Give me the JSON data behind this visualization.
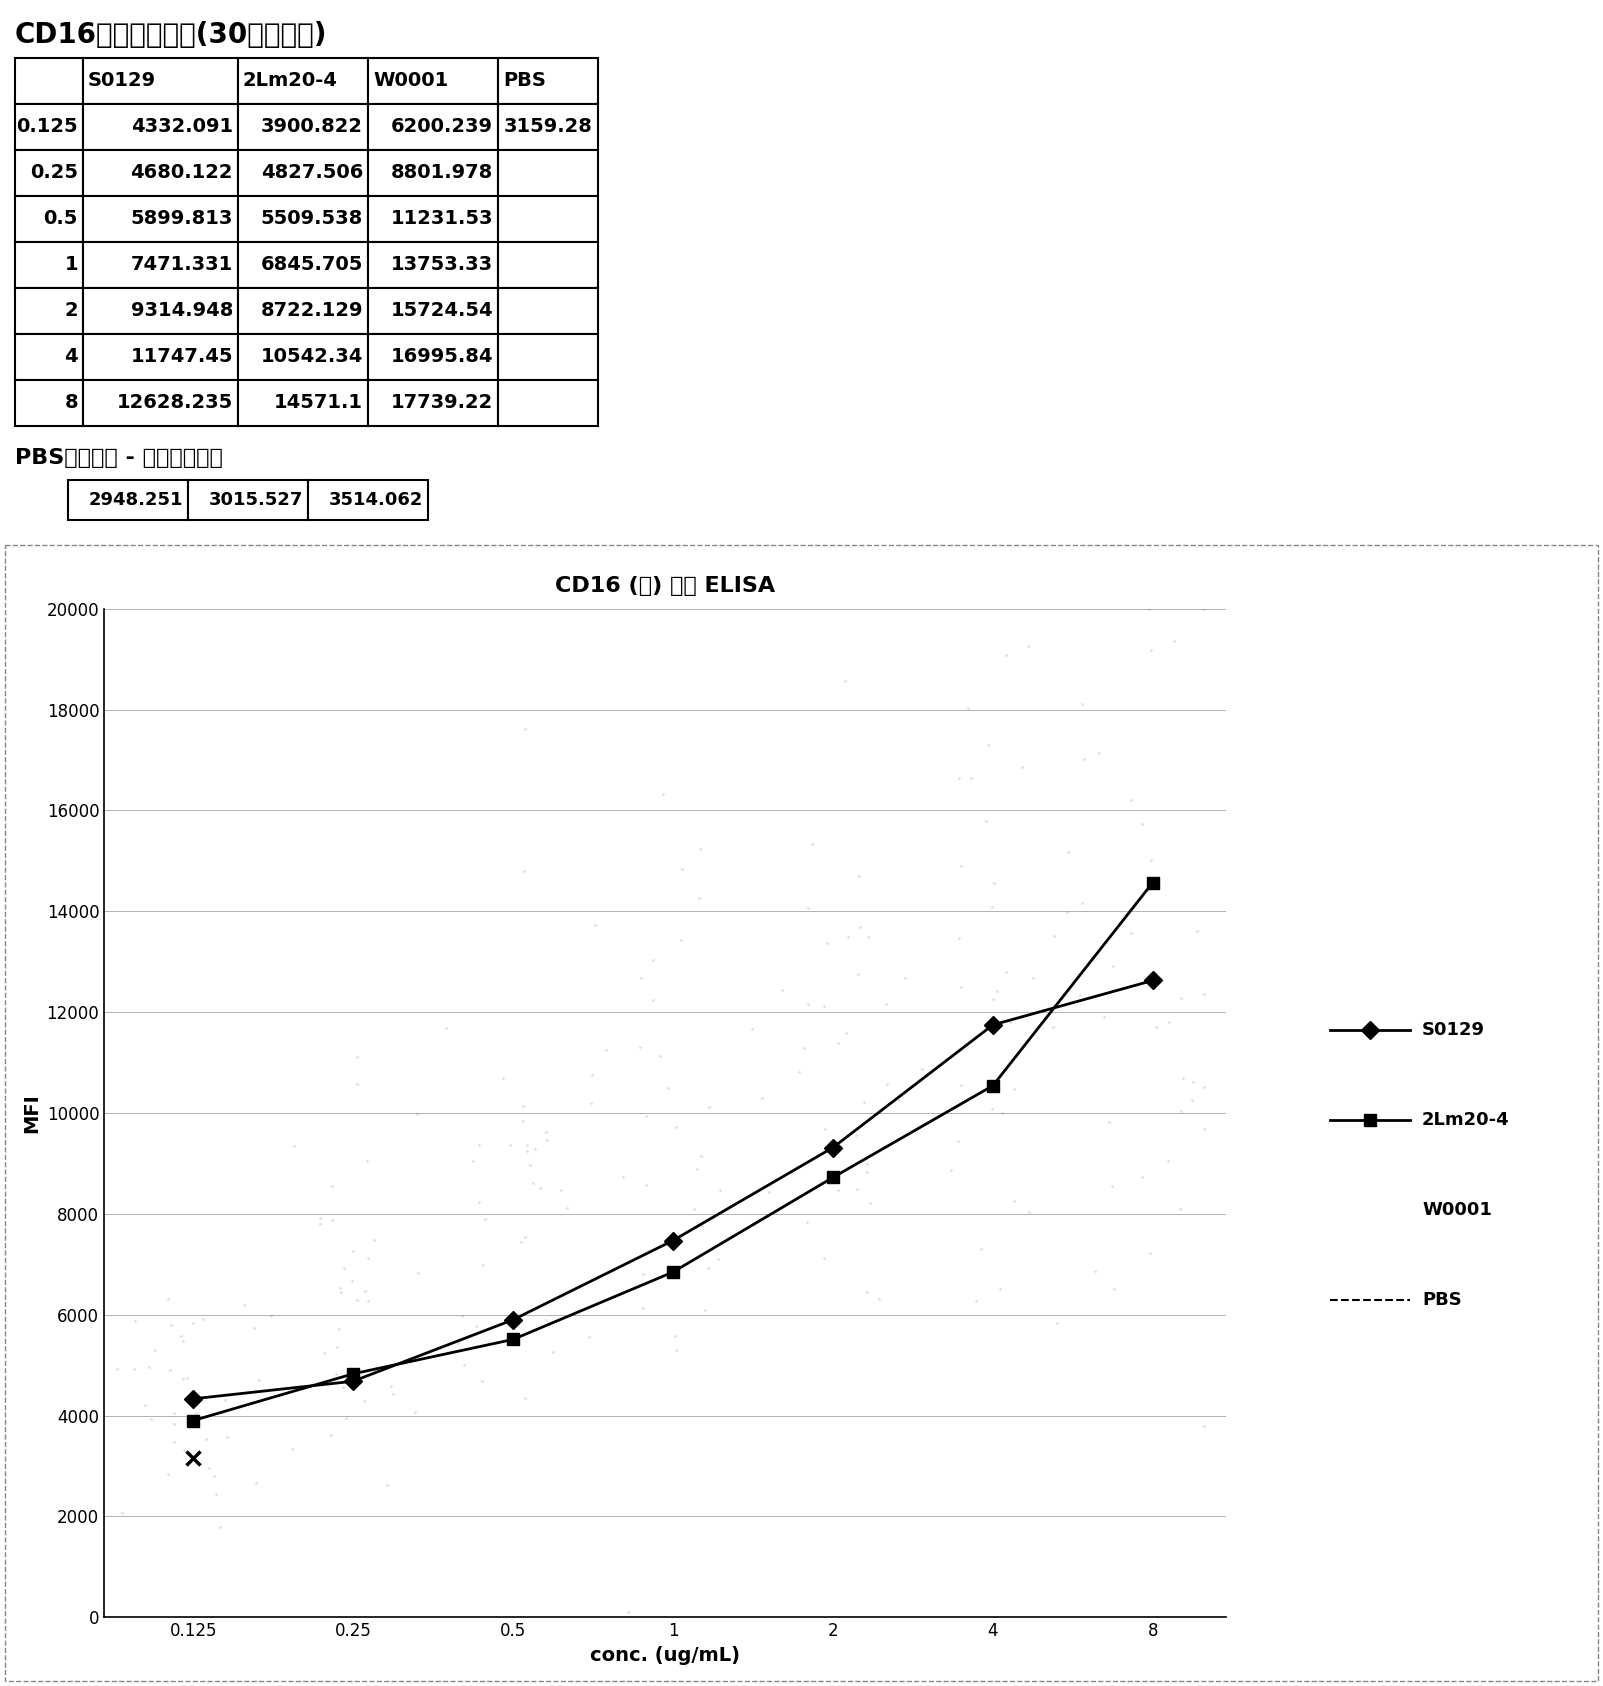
{
  "title_table": "CD16高亲和力数据(30分钟读数)",
  "table_headers": [
    "",
    "S0129",
    "2Lm20-4",
    "W0001",
    "PBS"
  ],
  "table_rows": [
    [
      "0.125",
      "4332.091",
      "3900.822",
      "6200.239",
      "3159.28"
    ],
    [
      "0.25",
      "4680.122",
      "4827.506",
      "8801.978",
      ""
    ],
    [
      "0.5",
      "5899.813",
      "5509.538",
      "11231.53",
      ""
    ],
    [
      "1",
      "7471.331",
      "6845.705",
      "13753.33",
      ""
    ],
    [
      "2",
      "9314.948",
      "8722.129",
      "15724.54",
      ""
    ],
    [
      "4",
      "11747.45",
      "10542.34",
      "16995.84",
      ""
    ],
    [
      "8",
      "12628.235",
      "14571.1",
      "17739.22",
      ""
    ]
  ],
  "pbs_label": "PBS阴性对照 - 三孔的平均值",
  "pbs_values": [
    "2948.251",
    "3015.527",
    "3514.062"
  ],
  "chart_title": "CD16 (高) 结合 ELISA",
  "x_label": "conc. (ug/mL)",
  "y_label": "MFI",
  "x_values": [
    0.125,
    0.25,
    0.5,
    1,
    2,
    4,
    8
  ],
  "S0129": [
    4332.091,
    4680.122,
    5899.813,
    7471.331,
    9314.948,
    11747.45,
    12628.235
  ],
  "2Lm20-4": [
    3900.822,
    4827.506,
    5509.538,
    6845.705,
    8722.129,
    10542.34,
    14571.1
  ],
  "W0001": [
    6200.239,
    8801.978,
    11231.53,
    13753.33,
    15724.54,
    16995.84,
    17739.22
  ],
  "PBS_single": [
    3159.28
  ],
  "PBS_x": [
    0.125
  ],
  "ylim": [
    0,
    20000
  ],
  "yticks": [
    0,
    2000,
    4000,
    6000,
    8000,
    10000,
    12000,
    14000,
    16000,
    18000,
    20000
  ],
  "xtick_labels": [
    "0.125",
    "0.25",
    "0.5",
    "1",
    "2",
    "4",
    "8"
  ],
  "legend_entries": [
    "S0129",
    "2Lm20-4",
    "W0001",
    "PBS"
  ]
}
